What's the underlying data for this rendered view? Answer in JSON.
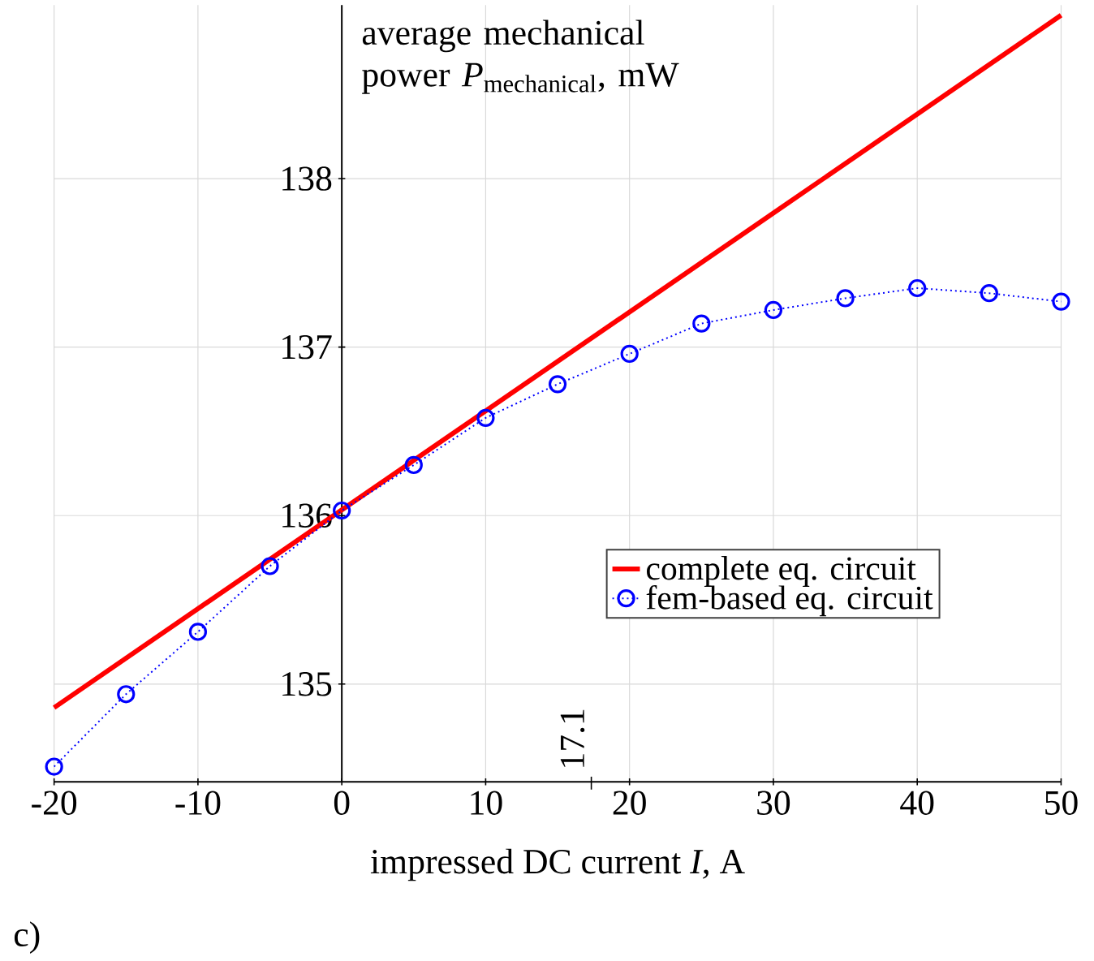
{
  "chart_data": {
    "type": "line",
    "xlabel": "impressed DC current *I*,  A",
    "ylabel": "\\begin{array}{@{}l@{}}\\text{average mechanical}\\\\ \\text{power }\\textit{P}_{\\text{mechanical}}\\text{, mW}\\end{array}",
    "xlim": [
      -20,
      50
    ],
    "ylim": [
      134.42,
      139.03
    ],
    "xticks": [
      -20,
      -10,
      0,
      10,
      20,
      30,
      40,
      50
    ],
    "yticks": [
      135,
      136,
      137,
      138
    ],
    "grid": true,
    "legend": "bottom right",
    "series": [
      {
        "name": "complete eq. circuit",
        "color": "#ff0000",
        "line_style": "solid",
        "marker": "none",
        "x": [
          -20,
          50
        ],
        "values": [
          134.86,
          138.97
        ]
      },
      {
        "name": "fem-based eq. circuit",
        "color": "#0000ff",
        "line_style": "dotted",
        "marker": "circle",
        "x": [
          -20,
          -15,
          -10,
          -5,
          0,
          5,
          10,
          15,
          20,
          25,
          30,
          35,
          40,
          45,
          50
        ],
        "values": [
          134.51,
          134.94,
          135.31,
          135.7,
          136.03,
          136.3,
          136.58,
          136.78,
          136.96,
          137.14,
          137.22,
          137.29,
          137.35,
          137.32,
          137.27
        ]
      }
    ],
    "annotations": [
      "c)",
      "17.1"
    ]
  }
}
